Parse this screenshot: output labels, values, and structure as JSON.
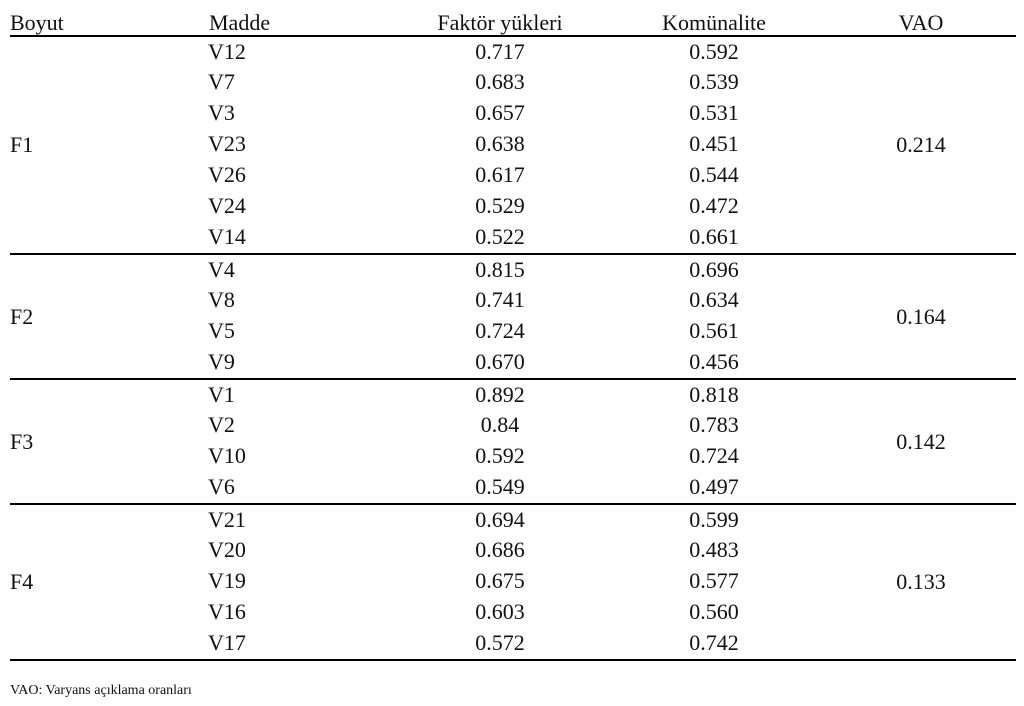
{
  "table": {
    "headers": {
      "boyut": "Boyut",
      "madde": "Madde",
      "faktor": "Faktör yükleri",
      "komunalite": "Komünalite",
      "vao": "VAO"
    },
    "groups": [
      {
        "boyut": "F1",
        "vao": "0.214",
        "rows": [
          {
            "madde": "V12",
            "faktor": "0.717",
            "komunalite": "0.592"
          },
          {
            "madde": "V7",
            "faktor": "0.683",
            "komunalite": "0.539"
          },
          {
            "madde": "V3",
            "faktor": "0.657",
            "komunalite": "0.531"
          },
          {
            "madde": "V23",
            "faktor": "0.638",
            "komunalite": "0.451"
          },
          {
            "madde": "V26",
            "faktor": "0.617",
            "komunalite": "0.544"
          },
          {
            "madde": "V24",
            "faktor": "0.529",
            "komunalite": "0.472"
          },
          {
            "madde": "V14",
            "faktor": "0.522",
            "komunalite": "0.661"
          }
        ]
      },
      {
        "boyut": "F2",
        "vao": "0.164",
        "rows": [
          {
            "madde": "V4",
            "faktor": "0.815",
            "komunalite": "0.696"
          },
          {
            "madde": "V8",
            "faktor": "0.741",
            "komunalite": "0.634"
          },
          {
            "madde": "V5",
            "faktor": "0.724",
            "komunalite": "0.561"
          },
          {
            "madde": "V9",
            "faktor": "0.670",
            "komunalite": "0.456"
          }
        ]
      },
      {
        "boyut": "F3",
        "vao": "0.142",
        "rows": [
          {
            "madde": "V1",
            "faktor": "0.892",
            "komunalite": "0.818"
          },
          {
            "madde": "V2",
            "faktor": "0.84",
            "komunalite": "0.783"
          },
          {
            "madde": "V10",
            "faktor": "0.592",
            "komunalite": "0.724"
          },
          {
            "madde": "V6",
            "faktor": "0.549",
            "komunalite": "0.497"
          }
        ]
      },
      {
        "boyut": "F4",
        "vao": "0.133",
        "rows": [
          {
            "madde": "V21",
            "faktor": "0.694",
            "komunalite": "0.599"
          },
          {
            "madde": "V20",
            "faktor": "0.686",
            "komunalite": "0.483"
          },
          {
            "madde": "V19",
            "faktor": "0.675",
            "komunalite": "0.577"
          },
          {
            "madde": "V16",
            "faktor": "0.603",
            "komunalite": "0.560"
          },
          {
            "madde": "V17",
            "faktor": "0.572",
            "komunalite": "0.742"
          }
        ]
      }
    ]
  },
  "footnote": "VAO: Varyans açıklama oranları"
}
